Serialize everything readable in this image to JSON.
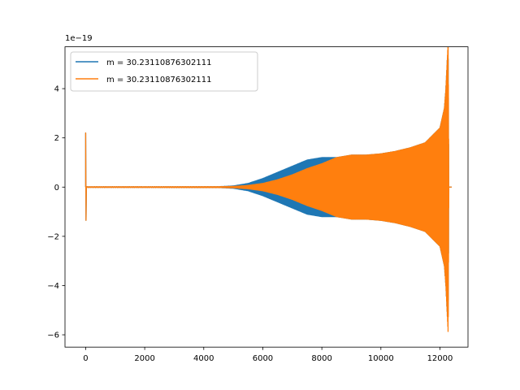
{
  "chart_data": {
    "type": "line",
    "title": "",
    "xlabel": "",
    "ylabel": "",
    "offset_text": "1e−19",
    "xlim": [
      -700,
      12950
    ],
    "ylim": [
      -6.5,
      5.7
    ],
    "xticks": [
      0,
      2000,
      4000,
      6000,
      8000,
      10000,
      12000
    ],
    "xtick_labels": [
      "0",
      "2000",
      "4000",
      "6000",
      "8000",
      "10000",
      "12000"
    ],
    "yticks": [
      -6,
      -4,
      -2,
      0,
      2,
      4
    ],
    "ytick_labels": [
      "−6",
      "−4",
      "−2",
      "0",
      "2",
      "4"
    ],
    "grid": false,
    "legend_position": "top-left",
    "series": [
      {
        "name": "m = 30.23110876302111",
        "color": "#1f77b4",
        "spike": {
          "x": 0,
          "max": 2.2,
          "min": -1.35
        },
        "envelope": {
          "x": [
            50,
            4500,
            5000,
            5500,
            6000,
            6500,
            7000,
            7500,
            8000,
            8500,
            9000,
            9500,
            10000,
            10500,
            11000,
            11500,
            12000,
            12150,
            12200,
            12250,
            12280,
            12300
          ],
          "amplitude": [
            0.02,
            0.02,
            0.05,
            0.15,
            0.35,
            0.6,
            0.85,
            1.1,
            1.2,
            1.2,
            1.3,
            1.3,
            1.35,
            1.45,
            1.6,
            1.8,
            2.4,
            3.2,
            4.0,
            5.25,
            5.2,
            0.5
          ]
        }
      },
      {
        "name": "m = 30.23110876302111",
        "color": "#ff7f0e",
        "spike": {
          "x": 0,
          "max": 2.2,
          "min": -1.35
        },
        "envelope": {
          "x": [
            50,
            4500,
            5000,
            5500,
            6000,
            6500,
            7000,
            7500,
            8000,
            8500,
            9000,
            9500,
            10000,
            10500,
            11000,
            11500,
            12000,
            12150,
            12200,
            12250,
            12280,
            12300
          ],
          "amplitude": [
            0.02,
            0.02,
            0.03,
            0.07,
            0.15,
            0.3,
            0.5,
            0.75,
            0.95,
            1.2,
            1.3,
            1.3,
            1.35,
            1.45,
            1.6,
            1.8,
            2.4,
            3.2,
            4.0,
            5.25,
            6.0,
            0.5
          ]
        }
      }
    ]
  }
}
